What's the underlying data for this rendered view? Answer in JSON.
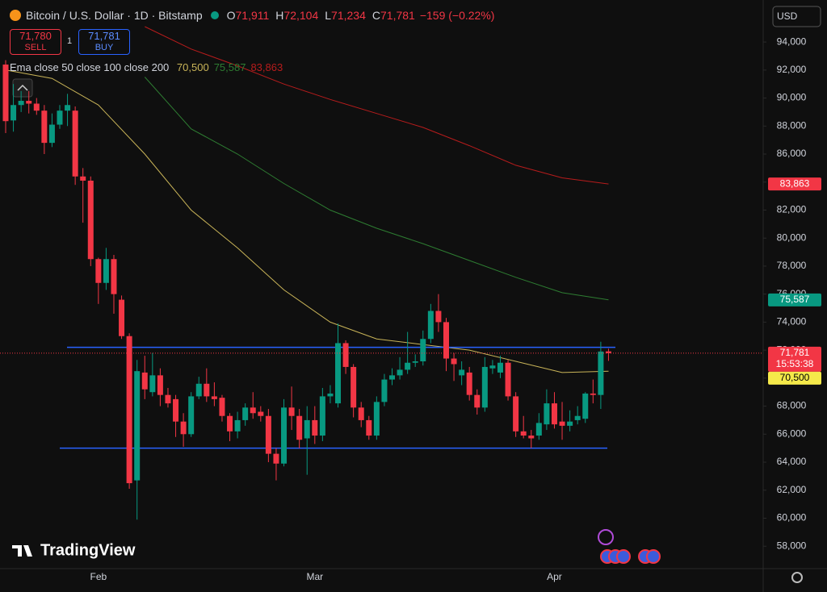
{
  "toolbar": {
    "symbol": "Bitcoin / U.S. Dollar · 1D · Bitstamp",
    "ohlc": [
      {
        "key": "O",
        "value": "71,911"
      },
      {
        "key": "H",
        "value": "72,104"
      },
      {
        "key": "L",
        "value": "71,234"
      },
      {
        "key": "C",
        "value": "71,781"
      }
    ],
    "change": "−159 (−0.22%)",
    "sell_price": "71,780",
    "sell": "SELL",
    "quantity": "1",
    "buy_price": "71,781",
    "buy": "BUY",
    "indicator": "Ema close 50 close 100 close 200",
    "currency": "USD",
    "brand": "TradingView"
  },
  "chart_data": {
    "type": "candlestick",
    "categories": [
      null,
      null,
      null,
      null,
      null,
      null,
      null,
      null,
      null,
      null,
      null,
      null,
      "Feb",
      null,
      null,
      null,
      null,
      null,
      null,
      null,
      null,
      null,
      null,
      null,
      null,
      null,
      null,
      null,
      null,
      null,
      null,
      null,
      null,
      null,
      null,
      null,
      null,
      null,
      null,
      null,
      "Mar",
      null,
      null,
      null,
      null,
      null,
      null,
      null,
      null,
      null,
      null,
      null,
      null,
      null,
      null,
      null,
      null,
      null,
      null,
      null,
      null,
      null,
      null,
      null,
      null,
      null,
      null,
      null,
      null,
      null,
      null,
      "Apr",
      null,
      null,
      null,
      null,
      null,
      null,
      null
    ],
    "open": [
      92390,
      88400,
      89500,
      89800,
      89600,
      89100,
      86800,
      88100,
      89100,
      89100,
      84400,
      84100,
      78500,
      76800,
      78500,
      75600,
      73000,
      62700,
      70400,
      69000,
      70200,
      68800,
      68500,
      66900,
      66000,
      68700,
      69600,
      68700,
      68600,
      67300,
      66200,
      67000,
      67900,
      67600,
      67300,
      64600,
      63900,
      67900,
      67300,
      65700,
      67000,
      65900,
      68700,
      68200,
      72500,
      70800,
      67900,
      67000,
      65900,
      68300,
      69900,
      70200,
      70600,
      71100,
      71200,
      72800,
      74800,
      74000,
      71400,
      70200,
      70400,
      68800,
      67900,
      70700,
      70400,
      71100,
      68700,
      66200,
      65900,
      65900,
      66700,
      68200,
      66900,
      66600,
      67000,
      67100,
      68900,
      68800,
      71911
    ],
    "high": [
      92700,
      91000,
      90500,
      90500,
      90000,
      89500,
      88900,
      89500,
      90300,
      89400,
      85000,
      84400,
      78600,
      79300,
      78800,
      75900,
      73200,
      71300,
      71600,
      71800,
      70700,
      69300,
      68800,
      67500,
      69000,
      70100,
      70700,
      69700,
      68800,
      67500,
      67600,
      68200,
      69000,
      68000,
      67800,
      65000,
      68500,
      69400,
      67800,
      68000,
      68000,
      69300,
      69500,
      73900,
      72700,
      71000,
      68300,
      67300,
      68700,
      70300,
      70700,
      71500,
      73300,
      71700,
      73400,
      75300,
      76000,
      74300,
      71800,
      71200,
      70800,
      69200,
      71500,
      71300,
      71600,
      71300,
      69000,
      67300,
      66300,
      67500,
      69200,
      69000,
      68300,
      67700,
      68000,
      69000,
      69900,
      72600,
      72104
    ],
    "low": [
      87500,
      87600,
      89000,
      88900,
      88800,
      86000,
      86500,
      87800,
      88000,
      83800,
      81100,
      78000,
      75300,
      76300,
      74600,
      72800,
      62100,
      59900,
      68500,
      68700,
      68000,
      67900,
      65800,
      65100,
      65800,
      68500,
      68300,
      68000,
      66900,
      65500,
      65700,
      66600,
      67100,
      66900,
      64000,
      62700,
      63700,
      66300,
      65000,
      63100,
      65300,
      65500,
      68200,
      67900,
      70300,
      67200,
      66500,
      65600,
      65600,
      68000,
      69500,
      69900,
      70300,
      70800,
      70900,
      72500,
      73300,
      70500,
      69800,
      69500,
      68400,
      67400,
      67600,
      70300,
      70000,
      68400,
      65800,
      65700,
      65000,
      65600,
      66300,
      66400,
      65600,
      66200,
      66700,
      66800,
      68200,
      67800,
      71234
    ],
    "close": [
      88350,
      89500,
      89800,
      89600,
      89100,
      86800,
      88100,
      89100,
      89500,
      84400,
      84100,
      78500,
      76800,
      78500,
      76000,
      73000,
      62500,
      70500,
      69200,
      70200,
      68800,
      68200,
      66900,
      66000,
      68700,
      69600,
      68700,
      68500,
      67300,
      66200,
      67000,
      67900,
      67500,
      67300,
      64600,
      63900,
      67900,
      67300,
      65600,
      67000,
      65900,
      68700,
      68900,
      72500,
      70800,
      67900,
      67000,
      65900,
      68300,
      69900,
      70200,
      70600,
      71100,
      71200,
      72800,
      74800,
      74000,
      71400,
      71000,
      70600,
      68800,
      67900,
      70800,
      70900,
      71100,
      68700,
      66200,
      65900,
      65700,
      66800,
      68200,
      66700,
      66600,
      66900,
      67300,
      68900,
      68800,
      71900,
      71781
    ],
    "up_color": "#089981",
    "down_color": "#f23645",
    "series": [
      {
        "name": "close 50",
        "legend_value": "70,500",
        "color": "#c9b458",
        "x": [
          0,
          6,
          12,
          18,
          24,
          30,
          36,
          42,
          48,
          54,
          60,
          66,
          72,
          78
        ],
        "values": [
          92000,
          91400,
          89500,
          86000,
          82000,
          79300,
          76300,
          74000,
          72800,
          72400,
          72000,
          71200,
          70400,
          70500
        ]
      },
      {
        "name": "close 100",
        "legend_value": "75,587",
        "color": "#2e7d32",
        "x": [
          0,
          6,
          12,
          18,
          24,
          30,
          36,
          42,
          48,
          54,
          60,
          66,
          72,
          78
        ],
        "values": [
          null,
          null,
          null,
          91500,
          87800,
          86000,
          83900,
          82000,
          80700,
          79600,
          78400,
          77200,
          76100,
          75587
        ]
      },
      {
        "name": "close 200",
        "legend_value": "83,863",
        "color": "#b71c1c",
        "x": [
          0,
          6,
          12,
          18,
          24,
          30,
          36,
          42,
          48,
          54,
          60,
          66,
          72,
          78
        ],
        "values": [
          null,
          null,
          null,
          95100,
          93500,
          92300,
          91000,
          89900,
          88900,
          87900,
          86600,
          85200,
          84300,
          83863
        ]
      }
    ],
    "hlines": [
      {
        "value": 72200,
        "color": "#2962ff"
      },
      {
        "value": 65000,
        "color": "#2962ff"
      }
    ],
    "price_tags": [
      {
        "value": 83863,
        "label": "83,863",
        "color": "#f23645",
        "text_color": "#ffffff"
      },
      {
        "value": 75587,
        "label": "75,587",
        "color": "#089981",
        "text_color": "#ffffff"
      },
      {
        "value": 71781,
        "label": "71,781",
        "sub": "15:53:38",
        "color": "#f23645",
        "text_color": "#ffffff"
      },
      {
        "value": 70500,
        "label": "70,500",
        "color": "#f5e94a",
        "text_color": "#000000"
      }
    ],
    "ylim": [
      56400,
      97000
    ],
    "yticks": [
      {
        "value": 58000,
        "label": "58,000"
      },
      {
        "value": 60000,
        "label": "60,000"
      },
      {
        "value": 62000,
        "label": "62,000"
      },
      {
        "value": 64000,
        "label": "64,000"
      },
      {
        "value": 66000,
        "label": "66,000"
      },
      {
        "value": 68000,
        "label": "68,000"
      },
      {
        "value": 70000,
        "label": "70,000"
      },
      {
        "value": 72000,
        "label": "72,000"
      },
      {
        "value": 74000,
        "label": "74,000"
      },
      {
        "value": 76000,
        "label": "76,000"
      },
      {
        "value": 78000,
        "label": "78,000"
      },
      {
        "value": 80000,
        "label": "80,000"
      },
      {
        "value": 82000,
        "label": "82,000"
      },
      {
        "value": 84000,
        "label": "84,000"
      },
      {
        "value": 86000,
        "label": "86,000"
      },
      {
        "value": 88000,
        "label": "88,000"
      },
      {
        "value": 90000,
        "label": "90,000"
      },
      {
        "value": 92000,
        "label": "92,000"
      },
      {
        "value": 94000,
        "label": "94,000"
      }
    ]
  }
}
